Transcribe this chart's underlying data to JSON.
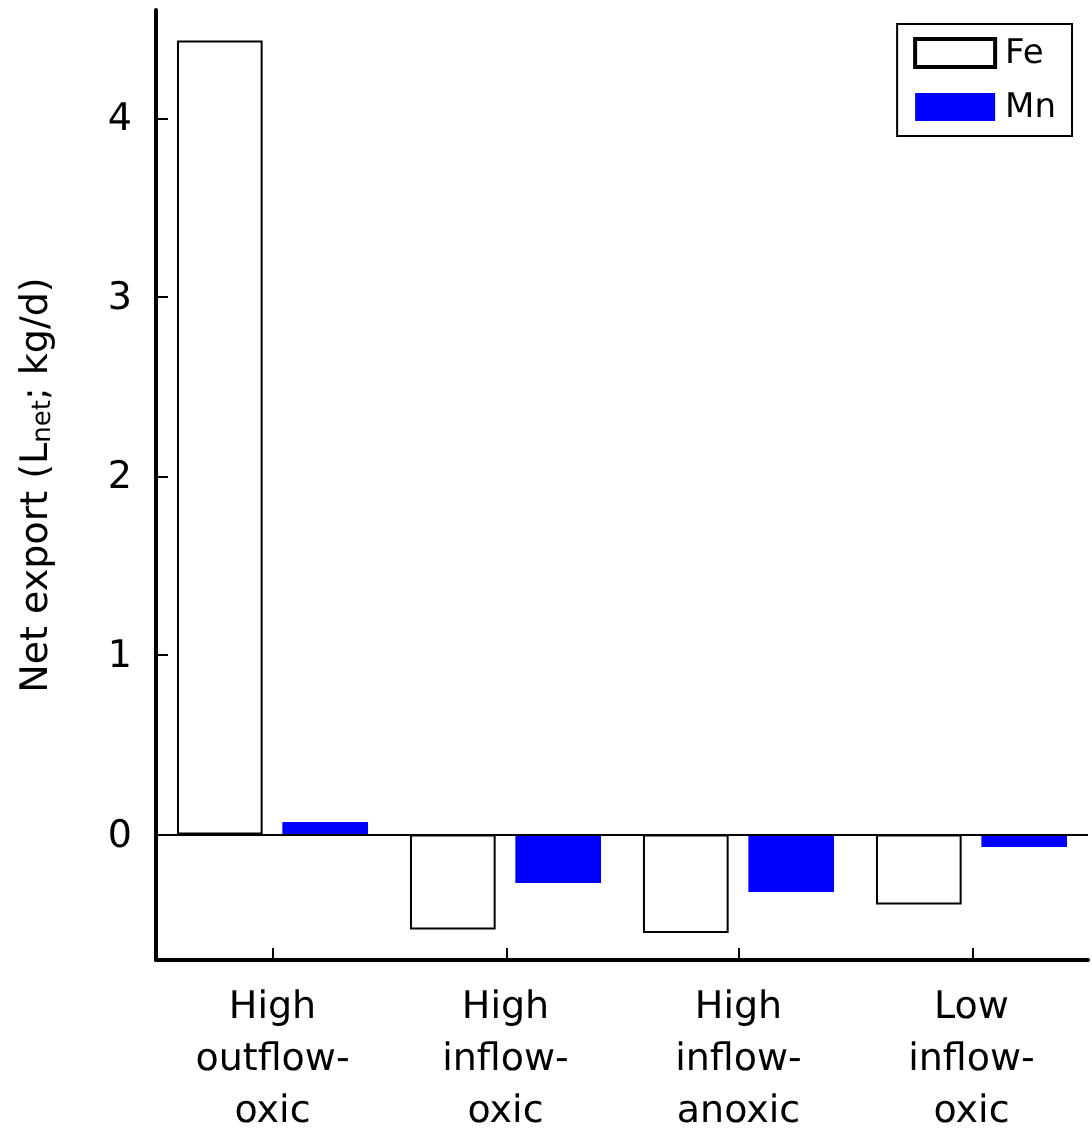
{
  "chart_data": {
    "type": "bar",
    "ylabel": "Net export (L$_{net}$; kg/d)",
    "categories": [
      "High\noutflow-\noxic",
      "High\ninflow-\noxic",
      "High\ninflow-\nanoxic",
      "Low\ninflow-\noxic"
    ],
    "series": [
      {
        "name": "Fe",
        "color": "#ffffff",
        "values": [
          4.43,
          -0.53,
          -0.55,
          -0.39
        ]
      },
      {
        "name": "Mn",
        "color": "#0000ff",
        "values": [
          0.07,
          -0.27,
          -0.32,
          -0.07
        ]
      }
    ],
    "ylim": [
      -0.7,
      4.6
    ],
    "yticks": [
      0,
      1,
      2,
      3,
      4
    ],
    "grid": false,
    "legend": "top right",
    "ref_lines": [
      {
        "axis": "y",
        "value": 0,
        "color": "#000000"
      }
    ]
  }
}
